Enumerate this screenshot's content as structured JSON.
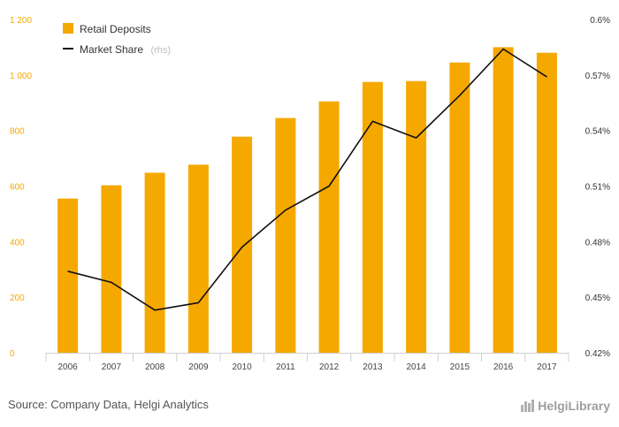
{
  "chart_data": {
    "type": "bar",
    "categories": [
      "2006",
      "2007",
      "2008",
      "2009",
      "2010",
      "2011",
      "2012",
      "2013",
      "2014",
      "2015",
      "2016",
      "2017"
    ],
    "series": [
      {
        "name": "Retail Deposits",
        "type": "bar",
        "axis": "left",
        "values": [
          555,
          603,
          648,
          677,
          778,
          845,
          905,
          975,
          978,
          1045,
          1100,
          1080
        ]
      },
      {
        "name": "Market Share",
        "name_suffix": "(rhs)",
        "type": "line",
        "axis": "right",
        "values": [
          0.464,
          0.458,
          0.443,
          0.447,
          0.477,
          0.497,
          0.51,
          0.545,
          0.536,
          0.559,
          0.584,
          0.569
        ]
      }
    ],
    "y_left": {
      "min": 0,
      "max": 1200,
      "ticks": [
        0,
        200,
        400,
        600,
        800,
        1000,
        1200
      ],
      "tick_labels": [
        "0",
        "200",
        "400",
        "600",
        "800",
        "1 000",
        "1 200"
      ]
    },
    "y_right": {
      "min": 0.42,
      "max": 0.6,
      "ticks": [
        0.42,
        0.45,
        0.48,
        0.51,
        0.54,
        0.57,
        0.6
      ],
      "tick_labels": [
        "0.42%",
        "0.45%",
        "0.48%",
        "0.51%",
        "0.54%",
        "0.57%",
        "0.6%"
      ]
    },
    "grid": false,
    "legend_position": "top-left",
    "colors": {
      "bar": "#f5a800",
      "line": "#111111",
      "left_ticks": "#f5a800"
    }
  },
  "footer": {
    "source": "Source: Company Data, Helgi Analytics",
    "brand": "HelgiLibrary"
  }
}
